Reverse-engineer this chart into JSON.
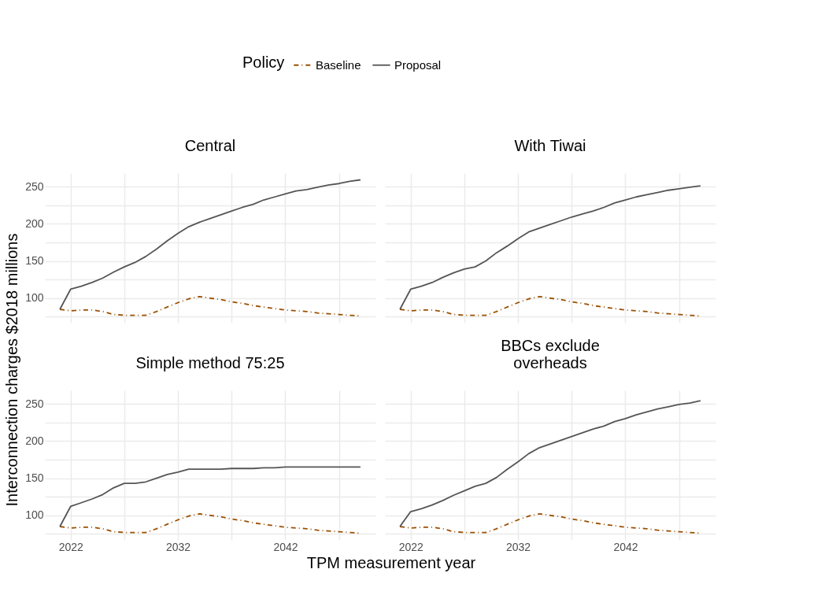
{
  "chart_data": [
    {
      "type": "line",
      "title": "Central",
      "ylabel": "Interconnection charges $2018 millions",
      "legend_title": "Policy",
      "legend": "top",
      "grid": true,
      "tick_labels": "y",
      "x": [
        2021,
        2022,
        2023,
        2024,
        2025,
        2026,
        2027,
        2028,
        2029,
        2030,
        2031,
        2032,
        2033,
        2034,
        2035,
        2036,
        2037,
        2038,
        2039,
        2040,
        2041,
        2042,
        2043,
        2044,
        2045,
        2046,
        2047,
        2048,
        2049
      ],
      "xlim": [
        2019.6,
        2050.4
      ],
      "xticks": [
        2022,
        {
          "value": 2027,
          "label": null
        },
        2032,
        {
          "value": 2037,
          "label": null
        },
        2042,
        {
          "value": 2047,
          "label": null
        }
      ],
      "ylim": [
        67,
        268
      ],
      "yticks": [
        {
          "value": 75,
          "label": null
        },
        100,
        {
          "value": 125,
          "label": null
        },
        150,
        {
          "value": 175,
          "label": null
        },
        200,
        {
          "value": 225,
          "label": null
        },
        250
      ],
      "series": [
        {
          "name": "Baseline",
          "color": "#9c4f00",
          "line_style": "dashed",
          "values": [
            85,
            83,
            84,
            84,
            82,
            78,
            77,
            77,
            77,
            82,
            88,
            94,
            99,
            102,
            100,
            98,
            95,
            93,
            90,
            88,
            86,
            84,
            83,
            82,
            80,
            79,
            78,
            77,
            76
          ]
        },
        {
          "name": "Proposal",
          "color": "#555555",
          "line_style": "solid",
          "values": [
            85,
            112,
            116,
            121,
            127,
            135,
            142,
            148,
            156,
            166,
            177,
            187,
            196,
            202,
            207,
            212,
            217,
            222,
            226,
            232,
            236,
            240,
            244,
            246,
            249,
            252,
            254,
            257,
            259
          ]
        }
      ]
    },
    {
      "type": "line",
      "title": "With Tiwai",
      "grid": true,
      "tick_labels": false,
      "x": [
        2021,
        2022,
        2023,
        2024,
        2025,
        2026,
        2027,
        2028,
        2029,
        2030,
        2031,
        2032,
        2033,
        2034,
        2035,
        2036,
        2037,
        2038,
        2039,
        2040,
        2041,
        2042,
        2043,
        2044,
        2045,
        2046,
        2047,
        2048,
        2049
      ],
      "xlim": [
        2019.6,
        2050.4
      ],
      "xticks": [
        2022,
        {
          "value": 2027,
          "label": null
        },
        2032,
        {
          "value": 2037,
          "label": null
        },
        2042,
        {
          "value": 2047,
          "label": null
        }
      ],
      "ylim": [
        67,
        268
      ],
      "yticks": [
        {
          "value": 75,
          "label": null
        },
        100,
        {
          "value": 125,
          "label": null
        },
        150,
        {
          "value": 175,
          "label": null
        },
        200,
        {
          "value": 225,
          "label": null
        },
        250
      ],
      "series": [
        {
          "name": "Baseline",
          "color": "#9c4f00",
          "line_style": "dashed",
          "values": [
            85,
            83,
            84,
            84,
            82,
            78,
            77,
            77,
            77,
            82,
            88,
            94,
            99,
            102,
            100,
            98,
            95,
            93,
            90,
            88,
            86,
            84,
            83,
            82,
            80,
            79,
            78,
            77,
            76
          ]
        },
        {
          "name": "Proposal",
          "color": "#555555",
          "line_style": "solid",
          "values": [
            85,
            112,
            116,
            121,
            128,
            134,
            139,
            142,
            150,
            161,
            170,
            180,
            189,
            194,
            199,
            204,
            209,
            213,
            217,
            222,
            228,
            232,
            236,
            239,
            242,
            245,
            247,
            249,
            251
          ]
        }
      ]
    },
    {
      "type": "line",
      "title": "Simple method 75:25",
      "xlabel": "TPM measurement year",
      "grid": true,
      "x": [
        2021,
        2022,
        2023,
        2024,
        2025,
        2026,
        2027,
        2028,
        2029,
        2030,
        2031,
        2032,
        2033,
        2034,
        2035,
        2036,
        2037,
        2038,
        2039,
        2040,
        2041,
        2042,
        2043,
        2044,
        2045,
        2046,
        2047,
        2048,
        2049
      ],
      "xlim": [
        2019.6,
        2050.4
      ],
      "xticks": [
        2022,
        {
          "value": 2027,
          "label": null
        },
        2032,
        {
          "value": 2037,
          "label": null
        },
        2042,
        {
          "value": 2047,
          "label": null
        }
      ],
      "ylim": [
        67,
        268
      ],
      "yticks": [
        {
          "value": 75,
          "label": null
        },
        100,
        {
          "value": 125,
          "label": null
        },
        150,
        {
          "value": 175,
          "label": null
        },
        200,
        {
          "value": 225,
          "label": null
        },
        250
      ],
      "series": [
        {
          "name": "Baseline",
          "color": "#9c4f00",
          "line_style": "dashed",
          "values": [
            85,
            83,
            84,
            84,
            82,
            78,
            77,
            77,
            77,
            82,
            88,
            94,
            99,
            102,
            100,
            98,
            95,
            93,
            90,
            88,
            86,
            84,
            83,
            82,
            80,
            79,
            78,
            77,
            76
          ]
        },
        {
          "name": "Proposal",
          "color": "#555555",
          "line_style": "solid",
          "values": [
            85,
            112,
            117,
            122,
            128,
            137,
            143,
            143,
            145,
            150,
            155,
            158,
            162,
            162,
            162,
            162,
            163,
            163,
            163,
            164,
            164,
            165,
            165,
            165,
            165,
            165,
            165,
            165,
            165
          ]
        }
      ]
    },
    {
      "type": "line",
      "title": "BBCs exclude\noverheads",
      "grid": true,
      "tick_labels": "x",
      "x": [
        2021,
        2022,
        2023,
        2024,
        2025,
        2026,
        2027,
        2028,
        2029,
        2030,
        2031,
        2032,
        2033,
        2034,
        2035,
        2036,
        2037,
        2038,
        2039,
        2040,
        2041,
        2042,
        2043,
        2044,
        2045,
        2046,
        2047,
        2048,
        2049
      ],
      "xlim": [
        2019.6,
        2050.4
      ],
      "xticks": [
        2022,
        {
          "value": 2027,
          "label": null
        },
        2032,
        {
          "value": 2037,
          "label": null
        },
        2042,
        {
          "value": 2047,
          "label": null
        }
      ],
      "ylim": [
        67,
        268
      ],
      "yticks": [
        {
          "value": 75,
          "label": null
        },
        100,
        {
          "value": 125,
          "label": null
        },
        150,
        {
          "value": 175,
          "label": null
        },
        200,
        {
          "value": 225,
          "label": null
        },
        250
      ],
      "series": [
        {
          "name": "Baseline",
          "color": "#9c4f00",
          "line_style": "dashed",
          "values": [
            85,
            83,
            84,
            84,
            82,
            78,
            77,
            77,
            77,
            82,
            88,
            94,
            99,
            102,
            100,
            98,
            95,
            93,
            90,
            88,
            86,
            84,
            83,
            82,
            80,
            79,
            78,
            77,
            76
          ]
        },
        {
          "name": "Proposal",
          "color": "#555555",
          "line_style": "solid",
          "values": [
            85,
            105,
            109,
            114,
            120,
            127,
            133,
            139,
            143,
            151,
            162,
            172,
            183,
            191,
            196,
            201,
            206,
            211,
            216,
            220,
            226,
            230,
            235,
            239,
            243,
            246,
            249,
            251,
            254
          ]
        }
      ]
    }
  ]
}
